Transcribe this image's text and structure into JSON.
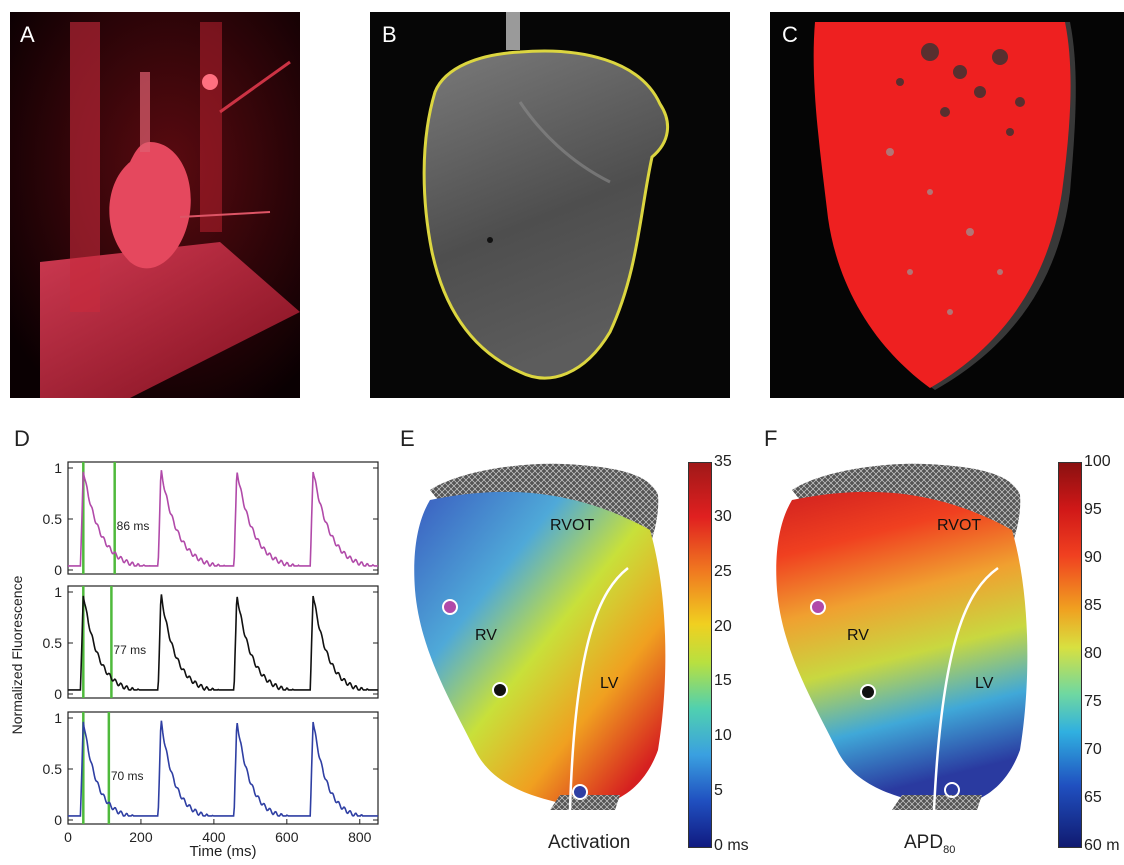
{
  "panels": {
    "A": {
      "label": "A"
    },
    "B": {
      "label": "B"
    },
    "C": {
      "label": "C"
    },
    "D": {
      "label": "D"
    },
    "E": {
      "label": "E"
    },
    "F": {
      "label": "F"
    }
  },
  "traces": {
    "ylabel": "Normalized Fluorescence",
    "xlabel": "Time (ms)",
    "xticks": [
      "0",
      "200",
      "400",
      "600",
      "800"
    ],
    "yticks": [
      "0",
      "0.5",
      "1"
    ],
    "rows": [
      {
        "color": "#b14aa9",
        "annotation": "86 ms",
        "marker_start": 42,
        "marker_end": 128
      },
      {
        "color": "#111111",
        "annotation": "77 ms",
        "marker_start": 42,
        "marker_end": 119
      },
      {
        "color": "#2f3fa3",
        "annotation": "70 ms",
        "marker_start": 42,
        "marker_end": 112
      }
    ],
    "marker_color": "#4fba3c",
    "peak_times": [
      42,
      255,
      463,
      672
    ]
  },
  "activation_map": {
    "labels": {
      "rvot": "RVOT",
      "rv": "RV",
      "lv": "LV"
    },
    "caption": "Activation",
    "colorbar_ticks": [
      "35",
      "30",
      "25",
      "20",
      "15",
      "10",
      "5",
      "0 ms"
    ]
  },
  "apd_map": {
    "labels": {
      "rvot": "RVOT",
      "rv": "RV",
      "lv": "LV"
    },
    "caption_main": "APD",
    "caption_sub": "80",
    "colorbar_ticks": [
      "100",
      "95",
      "90",
      "85",
      "80",
      "75",
      "70",
      "65",
      "60 m"
    ]
  },
  "chart_data": {
    "type": "line",
    "title": "",
    "xlabel": "Time (ms)",
    "ylabel": "Normalized Fluorescence",
    "xlim": [
      0,
      850
    ],
    "ylim": [
      0,
      1
    ],
    "x_ticks": [
      0,
      200,
      400,
      600,
      800
    ],
    "y_ticks": [
      0,
      0.5,
      1
    ],
    "grid": false,
    "series": [
      {
        "color": "#b14aa9",
        "peaks_ms": [
          42,
          255,
          463,
          672
        ],
        "apd_ms": 86
      },
      {
        "color": "#111111",
        "peaks_ms": [
          42,
          255,
          463,
          672
        ],
        "apd_ms": 77
      },
      {
        "color": "#2f3fa3",
        "peaks_ms": [
          42,
          255,
          463,
          672
        ],
        "apd_ms": 70
      }
    ]
  }
}
